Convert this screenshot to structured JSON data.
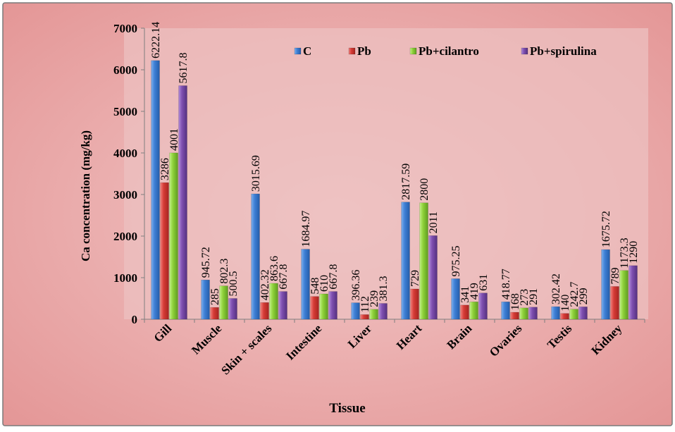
{
  "chart_data": {
    "type": "bar",
    "title": "",
    "xlabel": "Tissue",
    "ylabel": "Ca concentration (mg/kg)",
    "ylim": [
      0,
      7000
    ],
    "yticks": [
      0,
      1000,
      2000,
      3000,
      4000,
      5000,
      6000,
      7000
    ],
    "grid": false,
    "legend_position": "top-right",
    "categories": [
      "Gill",
      "Muscle",
      "Skin + scales",
      "Intestine",
      "Liver",
      "Heart",
      "Brain",
      "Ovaries",
      "Testis",
      "Kidney"
    ],
    "series": [
      {
        "name": "C",
        "color": "#3b7bd1",
        "values": [
          6222.14,
          945.72,
          3015.69,
          1684.97,
          396.36,
          2817.59,
          975.25,
          418.77,
          302.42,
          1675.72
        ],
        "labels": [
          "6222.14",
          "945.72",
          "3015.69",
          "1684.97",
          "396.36",
          "2817.59",
          "975.25",
          "418.77",
          "302.42",
          "1675.72"
        ]
      },
      {
        "name": "Pb",
        "color": "#d93a35",
        "values": [
          3286,
          285,
          402.32,
          548,
          112,
          729,
          341,
          168,
          140,
          789
        ],
        "labels": [
          "3286",
          "285",
          "402.32",
          "548",
          "112",
          "729",
          "341",
          "168",
          "140",
          "789"
        ]
      },
      {
        "name": "Pb+cilantro",
        "color": "#8fd23a",
        "values": [
          4001,
          802.3,
          863.6,
          610,
          239,
          2800,
          419,
          273,
          242.7,
          1173.3
        ],
        "labels": [
          "4001",
          "802.3",
          "863.6",
          "610",
          "239",
          "2800",
          "419",
          "273",
          "242.7",
          "1173.3"
        ]
      },
      {
        "name": "Pb+spirulina",
        "color": "#7e4fb0",
        "values": [
          5617.8,
          500.5,
          667.8,
          667.8,
          381.3,
          2011,
          631,
          291,
          299,
          1290
        ],
        "labels": [
          "5617.8",
          "500.5",
          "667.8",
          "667.8",
          "381.3",
          "2011",
          "631",
          "291",
          "299",
          "1290"
        ]
      }
    ]
  }
}
